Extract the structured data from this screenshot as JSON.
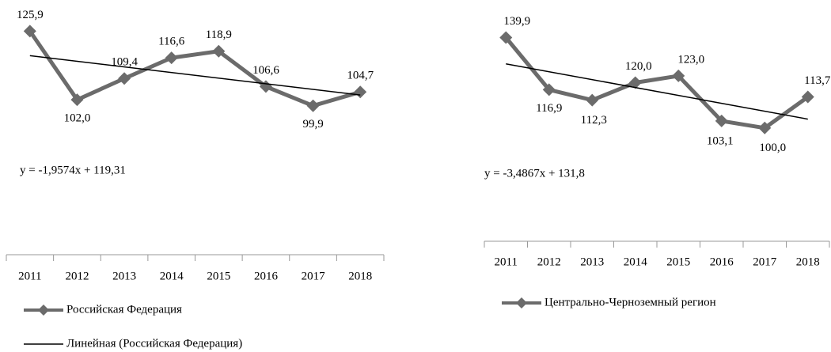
{
  "chart_data": [
    {
      "type": "line",
      "categories": [
        "2011",
        "2012",
        "2013",
        "2014",
        "2015",
        "2016",
        "2017",
        "2018"
      ],
      "series": [
        {
          "name": "Российская Федерация",
          "color": "#6b6b6b",
          "values": [
            125.9,
            102.0,
            109.4,
            116.6,
            118.9,
            106.6,
            99.9,
            104.7
          ],
          "value_labels": [
            "125,9",
            "102,0",
            "109,4",
            "116,6",
            "118,9",
            "106,6",
            "99,9",
            "104,7"
          ]
        }
      ],
      "trendline": {
        "name": "Линейная (Российская Федерация)",
        "equation": "y = -1,9574x + 119,31",
        "slope": -1.9574,
        "intercept": 119.31,
        "color": "#000000"
      },
      "ylim": [
        48,
        134
      ]
    },
    {
      "type": "line",
      "categories": [
        "2011",
        "2012",
        "2013",
        "2014",
        "2015",
        "2016",
        "2017",
        "2018"
      ],
      "series": [
        {
          "name": "Центрально-Черноземный регион",
          "color": "#6b6b6b",
          "values": [
            139.9,
            116.9,
            112.3,
            120.0,
            123.0,
            103.1,
            100.0,
            113.7
          ],
          "value_labels": [
            "139,9",
            "116,9",
            "112,3",
            "120,0",
            "123,0",
            "103,1",
            "100,0",
            "113,7"
          ]
        }
      ],
      "trendline": {
        "equation": "y = -3,4867x + 131,8",
        "slope": -3.4867,
        "intercept": 131.8,
        "color": "#000000"
      },
      "ylim": [
        50,
        153
      ]
    }
  ]
}
